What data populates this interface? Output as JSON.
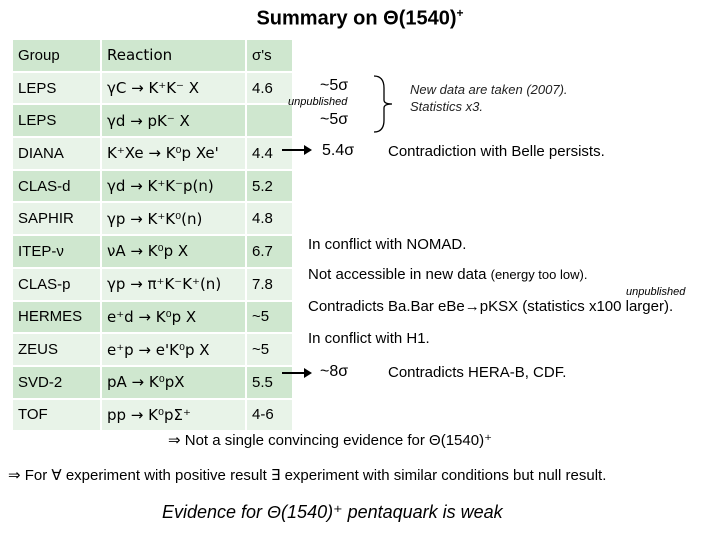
{
  "title": "Summary on Θ(1540)",
  "title_sup": "+",
  "table": {
    "headers": [
      "Group",
      "Reaction",
      "σ's"
    ],
    "rows": [
      {
        "group": "LEPS",
        "reaction": "γC → K⁺K⁻ X",
        "sigma": "4.6"
      },
      {
        "group": "LEPS",
        "reaction": "γd → pK⁻ X",
        "sigma": ""
      },
      {
        "group": "DIANA",
        "reaction": "K⁺Xe → K⁰p Xe'",
        "sigma": "4.4"
      },
      {
        "group": "CLAS-d",
        "reaction": "γd → K⁺K⁻p(n)",
        "sigma": "5.2"
      },
      {
        "group": "SAPHIR",
        "reaction": "γp → K⁺K⁰(n)",
        "sigma": "4.8"
      },
      {
        "group": "ITEP-ν",
        "reaction": "νA → K⁰p X",
        "sigma": "6.7"
      },
      {
        "group": "CLAS-p",
        "reaction": "γp → π⁺K⁻K⁺(n)",
        "sigma": "7.8"
      },
      {
        "group": "HERMES",
        "reaction": "e⁺d → K⁰p X",
        "sigma": "~5"
      },
      {
        "group": "ZEUS",
        "reaction": "e⁺p → e'K⁰p X",
        "sigma": "~5"
      },
      {
        "group": "SVD-2",
        "reaction": "pA → K⁰pX",
        "sigma": "5.5"
      },
      {
        "group": "TOF",
        "reaction": "pp → K⁰pΣ⁺",
        "sigma": "4-6"
      }
    ]
  },
  "annotations": {
    "leps_new_sigma1": "~5σ",
    "leps_unpublished": "unpublished",
    "leps_new_sigma2": "~5σ",
    "leps_new_note": "New data are taken (2007).",
    "leps_stats": "Statistics x3.",
    "diana_sigma": "5.4σ",
    "diana_note": "Contradiction with Belle persists.",
    "itep_note": "In conflict with NOMAD.",
    "clasp_note": "Not accessible in new data",
    "clasp_paren": "(energy too low).",
    "hermes_unpublished": "unpublished",
    "hermes_note": "Contradicts Ba.Bar eBe→pKSX (statistics x100 larger).",
    "zeus_note": "In conflict with H1.",
    "svd_sigma": "~8σ",
    "svd_note": "Contradicts HERA-B, CDF."
  },
  "conclusions": {
    "line1": "⇒ Not a single convincing evidence for Θ(1540)⁺",
    "line2": "⇒ For ∀ experiment with positive result ∃ experiment with similar conditions but null result.",
    "line3": "Evidence for Θ(1540)⁺ pentaquark is weak"
  }
}
